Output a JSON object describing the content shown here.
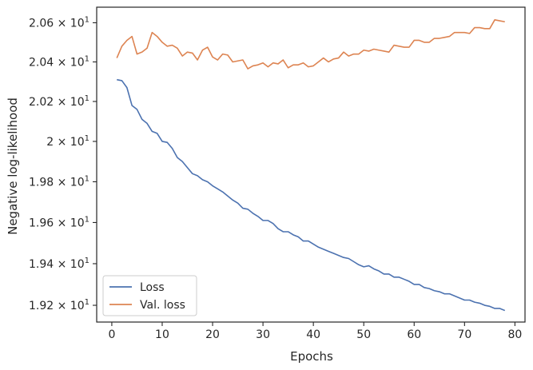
{
  "chart_data": {
    "type": "line",
    "xlabel": "Epochs",
    "ylabel": "Negative log-likelihood",
    "yscale": "log",
    "xlim": [
      -3,
      82
    ],
    "ylim": [
      19.12,
      20.68
    ],
    "grid": false,
    "legend_position": "lower-left",
    "x_ticks": [
      0,
      10,
      20,
      30,
      40,
      50,
      60,
      70,
      80
    ],
    "y_ticks": [
      {
        "value": 19.2,
        "mantissa": "1.92",
        "times": "×",
        "exponent": "1"
      },
      {
        "value": 19.4,
        "mantissa": "1.94",
        "times": "×",
        "exponent": "1"
      },
      {
        "value": 19.6,
        "mantissa": "1.96",
        "times": "×",
        "exponent": "1"
      },
      {
        "value": 19.8,
        "mantissa": "1.98",
        "times": "×",
        "exponent": "1"
      },
      {
        "value": 20.0,
        "mantissa": "2",
        "times": "×",
        "exponent": "1"
      },
      {
        "value": 20.2,
        "mantissa": "2.02",
        "times": "×",
        "exponent": "1"
      },
      {
        "value": 20.4,
        "mantissa": "2.04",
        "times": "×",
        "exponent": "1"
      },
      {
        "value": 20.6,
        "mantissa": "2.06",
        "times": "×",
        "exponent": "1"
      }
    ],
    "tick_base": "10",
    "series": [
      {
        "name": "Loss",
        "color": "#4c72b0",
        "x": [
          1,
          2,
          3,
          4,
          5,
          6,
          7,
          8,
          9,
          10,
          11,
          12,
          13,
          14,
          15,
          16,
          17,
          18,
          19,
          20,
          21,
          22,
          23,
          24,
          25,
          26,
          27,
          28,
          29,
          30,
          31,
          32,
          33,
          34,
          35,
          36,
          37,
          38,
          39,
          40,
          41,
          42,
          43,
          44,
          45,
          46,
          47,
          48,
          49,
          50,
          51,
          52,
          53,
          54,
          55,
          56,
          57,
          58,
          59,
          60,
          61,
          62,
          63,
          64,
          65,
          66,
          67,
          68,
          69,
          70,
          71,
          72,
          73,
          74,
          75,
          76,
          77,
          78
        ],
        "y": [
          20.31,
          20.305,
          20.27,
          20.18,
          20.16,
          20.11,
          20.09,
          20.05,
          20.04,
          20.0,
          19.995,
          19.965,
          19.92,
          19.9,
          19.87,
          19.84,
          19.83,
          19.81,
          19.8,
          19.78,
          19.765,
          19.75,
          19.73,
          19.71,
          19.695,
          19.67,
          19.665,
          19.645,
          19.63,
          19.61,
          19.61,
          19.595,
          19.57,
          19.555,
          19.555,
          19.54,
          19.53,
          19.51,
          19.51,
          19.495,
          19.48,
          19.47,
          19.46,
          19.45,
          19.44,
          19.43,
          19.425,
          19.41,
          19.395,
          19.385,
          19.39,
          19.375,
          19.365,
          19.35,
          19.35,
          19.335,
          19.335,
          19.325,
          19.315,
          19.3,
          19.3,
          19.285,
          19.28,
          19.27,
          19.265,
          19.255,
          19.255,
          19.245,
          19.235,
          19.225,
          19.225,
          19.215,
          19.21,
          19.2,
          19.195,
          19.185,
          19.185,
          19.175
        ]
      },
      {
        "name": "Val. loss",
        "color": "#dd8452",
        "x": [
          1,
          2,
          3,
          4,
          5,
          6,
          7,
          8,
          9,
          10,
          11,
          12,
          13,
          14,
          15,
          16,
          17,
          18,
          19,
          20,
          21,
          22,
          23,
          24,
          25,
          26,
          27,
          28,
          29,
          30,
          31,
          32,
          33,
          34,
          35,
          36,
          37,
          38,
          39,
          40,
          41,
          42,
          43,
          44,
          45,
          46,
          47,
          48,
          49,
          50,
          51,
          52,
          53,
          54,
          55,
          56,
          57,
          58,
          59,
          60,
          61,
          62,
          63,
          64,
          65,
          66,
          67,
          68,
          69,
          70,
          71,
          72,
          73,
          74,
          75,
          76,
          77,
          78
        ],
        "y": [
          20.42,
          20.48,
          20.51,
          20.53,
          20.44,
          20.45,
          20.47,
          20.55,
          20.53,
          20.5,
          20.48,
          20.485,
          20.47,
          20.43,
          20.45,
          20.445,
          20.41,
          20.46,
          20.475,
          20.425,
          20.41,
          20.44,
          20.435,
          20.4,
          20.405,
          20.41,
          20.365,
          20.38,
          20.385,
          20.395,
          20.375,
          20.395,
          20.39,
          20.41,
          20.37,
          20.385,
          20.385,
          20.395,
          20.375,
          20.38,
          20.4,
          20.42,
          20.4,
          20.415,
          20.42,
          20.45,
          20.43,
          20.44,
          20.44,
          20.46,
          20.455,
          20.465,
          20.46,
          20.455,
          20.45,
          20.485,
          20.48,
          20.475,
          20.475,
          20.51,
          20.51,
          20.5,
          20.5,
          20.52,
          20.52,
          20.525,
          20.53,
          20.55,
          20.55,
          20.55,
          20.545,
          20.575,
          20.575,
          20.57,
          20.57,
          20.615,
          20.61,
          20.605
        ]
      }
    ]
  }
}
